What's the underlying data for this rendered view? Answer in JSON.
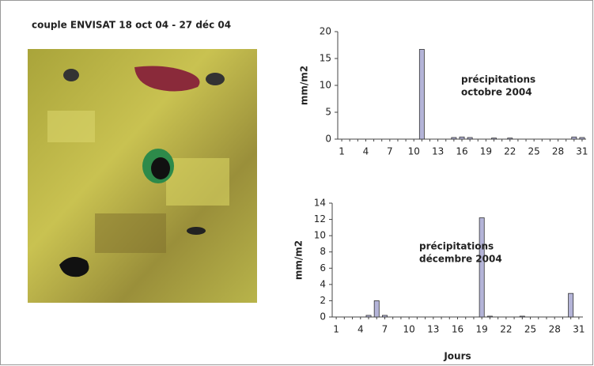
{
  "title": "couple ENVISAT 18 oct 04 - 27 déc 04",
  "chart_data": [
    {
      "type": "bar",
      "annotation": [
        "précipitations",
        "octobre 2004"
      ],
      "ylabel": "mm/m2",
      "categories": [
        1,
        null,
        null,
        4,
        null,
        null,
        7,
        null,
        null,
        10,
        null,
        null,
        13,
        null,
        null,
        16,
        null,
        null,
        19,
        null,
        null,
        22,
        null,
        null,
        25,
        null,
        null,
        28,
        null,
        null,
        31
      ],
      "values": [
        0,
        0,
        0,
        0,
        0,
        0,
        0,
        0,
        0,
        0,
        16.7,
        0,
        0,
        0,
        0.3,
        0.4,
        0.3,
        0,
        0,
        0.2,
        0,
        0.2,
        0,
        0,
        0,
        0,
        0,
        0,
        0,
        0.4,
        0.3
      ],
      "color": "#b4b4d8",
      "ylim": [
        0,
        20
      ],
      "yticks": [
        0,
        5,
        10,
        15,
        20
      ],
      "grid": false
    },
    {
      "type": "bar",
      "annotation": [
        "précipitations",
        "décembre 2004"
      ],
      "ylabel": "mm/m2",
      "xlabel": "Jours",
      "categories": [
        1,
        null,
        null,
        4,
        null,
        null,
        7,
        null,
        null,
        10,
        null,
        null,
        13,
        null,
        null,
        16,
        null,
        null,
        19,
        null,
        null,
        22,
        null,
        null,
        25,
        null,
        null,
        28,
        null,
        null,
        31
      ],
      "values": [
        0,
        0,
        0,
        0,
        0.2,
        2.0,
        0.2,
        0,
        0,
        0,
        0,
        0,
        0,
        0,
        0,
        0,
        0,
        0,
        12.2,
        0.1,
        0,
        0,
        0,
        0.1,
        0,
        0,
        0,
        0,
        0,
        2.9,
        0
      ],
      "color": "#b4b4d8",
      "ylim": [
        0,
        14
      ],
      "yticks": [
        0,
        2,
        4,
        6,
        8,
        10,
        12,
        14
      ],
      "grid": false
    }
  ]
}
